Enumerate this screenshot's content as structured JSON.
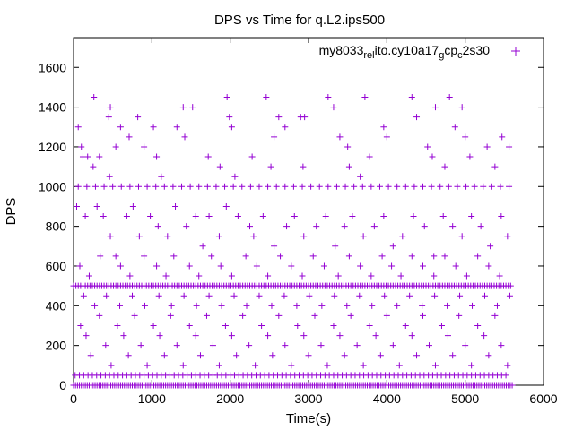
{
  "chart_data": {
    "type": "scatter",
    "title": "DPS vs Time for q.L2.ips500",
    "xlabel": "Time(s)",
    "ylabel": "DPS",
    "xlim": [
      0,
      6000
    ],
    "ylim": [
      0,
      1750
    ],
    "xticks": [
      0,
      1000,
      2000,
      3000,
      4000,
      5000,
      6000
    ],
    "yticks": [
      0,
      200,
      400,
      600,
      800,
      1000,
      1200,
      1400,
      1600
    ],
    "grid": false,
    "legend_position": "top-right",
    "marker": "+",
    "series": [
      {
        "name_parts": [
          {
            "text": "my8033",
            "sub": false
          },
          {
            "text": "rel",
            "sub": true
          },
          {
            "text": "ito.cy10a17",
            "sub": false
          },
          {
            "text": "g",
            "sub": true
          },
          {
            "text": "cp",
            "sub": false
          },
          {
            "text": "c",
            "sub": true
          },
          {
            "text": "2s30",
            "sub": false
          }
        ],
        "color": "#9400d3",
        "x_range": [
          0,
          5600
        ],
        "points": [
          [
            60,
            1300
          ],
          [
            100,
            1200
          ],
          [
            180,
            1150
          ],
          [
            260,
            1450
          ],
          [
            450,
            1350
          ],
          [
            470,
            1400
          ],
          [
            540,
            1200
          ],
          [
            600,
            1300
          ],
          [
            710,
            1250
          ],
          [
            820,
            1350
          ],
          [
            900,
            1200
          ],
          [
            1020,
            1300
          ],
          [
            1060,
            1150
          ],
          [
            1320,
            1300
          ],
          [
            1400,
            1400
          ],
          [
            1420,
            1250
          ],
          [
            1520,
            1400
          ],
          [
            1720,
            1150
          ],
          [
            1960,
            1450
          ],
          [
            1990,
            1350
          ],
          [
            2020,
            1300
          ],
          [
            2280,
            1150
          ],
          [
            2460,
            1450
          ],
          [
            2560,
            1250
          ],
          [
            2620,
            1350
          ],
          [
            2700,
            1300
          ],
          [
            2900,
            1350
          ],
          [
            2950,
            1350
          ],
          [
            3250,
            1450
          ],
          [
            3320,
            1400
          ],
          [
            3400,
            1250
          ],
          [
            3500,
            1200
          ],
          [
            3720,
            1450
          ],
          [
            3960,
            1300
          ],
          [
            4000,
            1250
          ],
          [
            4320,
            1450
          ],
          [
            4380,
            1350
          ],
          [
            4520,
            1200
          ],
          [
            4620,
            1400
          ],
          [
            4800,
            1450
          ],
          [
            4870,
            1300
          ],
          [
            4960,
            1400
          ],
          [
            5000,
            1250
          ],
          [
            5280,
            1200
          ],
          [
            5470,
            1250
          ],
          [
            5560,
            1200
          ],
          [
            120,
            1150
          ],
          [
            250,
            1100
          ],
          [
            330,
            1150
          ],
          [
            460,
            1050
          ],
          [
            1120,
            1050
          ],
          [
            1870,
            1100
          ],
          [
            2060,
            1050
          ],
          [
            2520,
            1100
          ],
          [
            2930,
            1100
          ],
          [
            3520,
            1100
          ],
          [
            3660,
            1050
          ],
          [
            3780,
            1150
          ],
          [
            4580,
            1150
          ],
          [
            4740,
            1100
          ],
          [
            5060,
            1150
          ],
          [
            5380,
            1100
          ],
          [
            40,
            900
          ],
          [
            150,
            850
          ],
          [
            300,
            900
          ],
          [
            380,
            850
          ],
          [
            470,
            750
          ],
          [
            540,
            650
          ],
          [
            680,
            850
          ],
          [
            760,
            900
          ],
          [
            840,
            750
          ],
          [
            980,
            850
          ],
          [
            1080,
            800
          ],
          [
            1200,
            750
          ],
          [
            1300,
            900
          ],
          [
            1440,
            800
          ],
          [
            1560,
            850
          ],
          [
            1650,
            700
          ],
          [
            1730,
            850
          ],
          [
            1860,
            750
          ],
          [
            1950,
            900
          ],
          [
            2100,
            850
          ],
          [
            2250,
            800
          ],
          [
            2300,
            750
          ],
          [
            2420,
            850
          ],
          [
            2560,
            700
          ],
          [
            2720,
            800
          ],
          [
            2820,
            850
          ],
          [
            2940,
            750
          ],
          [
            3100,
            800
          ],
          [
            3220,
            850
          ],
          [
            3340,
            700
          ],
          [
            3460,
            800
          ],
          [
            3560,
            850
          ],
          [
            3700,
            750
          ],
          [
            3840,
            800
          ],
          [
            3960,
            850
          ],
          [
            4080,
            700
          ],
          [
            4200,
            750
          ],
          [
            4340,
            850
          ],
          [
            4480,
            800
          ],
          [
            4600,
            650
          ],
          [
            4720,
            850
          ],
          [
            4840,
            800
          ],
          [
            4960,
            750
          ],
          [
            5080,
            850
          ],
          [
            5200,
            800
          ],
          [
            5320,
            700
          ],
          [
            5460,
            850
          ],
          [
            5540,
            750
          ],
          [
            80,
            600
          ],
          [
            200,
            550
          ],
          [
            340,
            650
          ],
          [
            600,
            600
          ],
          [
            720,
            550
          ],
          [
            900,
            650
          ],
          [
            1060,
            600
          ],
          [
            1180,
            550
          ],
          [
            1280,
            650
          ],
          [
            1480,
            600
          ],
          [
            1600,
            550
          ],
          [
            1760,
            650
          ],
          [
            1880,
            600
          ],
          [
            2020,
            550
          ],
          [
            2200,
            650
          ],
          [
            2340,
            600
          ],
          [
            2480,
            550
          ],
          [
            2640,
            650
          ],
          [
            2780,
            600
          ],
          [
            2920,
            550
          ],
          [
            3060,
            650
          ],
          [
            3200,
            600
          ],
          [
            3380,
            550
          ],
          [
            3520,
            650
          ],
          [
            3660,
            600
          ],
          [
            3800,
            550
          ],
          [
            3940,
            650
          ],
          [
            4060,
            600
          ],
          [
            4180,
            550
          ],
          [
            4320,
            650
          ],
          [
            4460,
            600
          ],
          [
            4600,
            550
          ],
          [
            4740,
            650
          ],
          [
            4880,
            600
          ],
          [
            5020,
            550
          ],
          [
            5160,
            650
          ],
          [
            5300,
            600
          ],
          [
            5440,
            550
          ],
          [
            90,
            300
          ],
          [
            160,
            250
          ],
          [
            220,
            150
          ],
          [
            330,
            350
          ],
          [
            410,
            200
          ],
          [
            480,
            100
          ],
          [
            560,
            300
          ],
          [
            640,
            250
          ],
          [
            700,
            150
          ],
          [
            780,
            350
          ],
          [
            860,
            200
          ],
          [
            940,
            100
          ],
          [
            1020,
            300
          ],
          [
            1100,
            250
          ],
          [
            1160,
            150
          ],
          [
            1240,
            350
          ],
          [
            1320,
            200
          ],
          [
            1400,
            100
          ],
          [
            1480,
            300
          ],
          [
            1560,
            250
          ],
          [
            1620,
            150
          ],
          [
            1700,
            350
          ],
          [
            1780,
            200
          ],
          [
            1860,
            100
          ],
          [
            1940,
            300
          ],
          [
            2020,
            250
          ],
          [
            2080,
            150
          ],
          [
            2160,
            350
          ],
          [
            2240,
            200
          ],
          [
            2320,
            100
          ],
          [
            2400,
            300
          ],
          [
            2480,
            250
          ],
          [
            2540,
            150
          ],
          [
            2620,
            350
          ],
          [
            2700,
            200
          ],
          [
            2780,
            100
          ],
          [
            2860,
            300
          ],
          [
            2940,
            250
          ],
          [
            3000,
            150
          ],
          [
            3080,
            350
          ],
          [
            3160,
            200
          ],
          [
            3240,
            100
          ],
          [
            3320,
            300
          ],
          [
            3400,
            250
          ],
          [
            3460,
            150
          ],
          [
            3540,
            350
          ],
          [
            3620,
            200
          ],
          [
            3700,
            100
          ],
          [
            3780,
            300
          ],
          [
            3860,
            250
          ],
          [
            3920,
            150
          ],
          [
            4000,
            350
          ],
          [
            4080,
            200
          ],
          [
            4160,
            100
          ],
          [
            4240,
            300
          ],
          [
            4320,
            250
          ],
          [
            4380,
            150
          ],
          [
            4460,
            350
          ],
          [
            4540,
            200
          ],
          [
            4620,
            100
          ],
          [
            4700,
            300
          ],
          [
            4780,
            250
          ],
          [
            4840,
            150
          ],
          [
            4920,
            350
          ],
          [
            5000,
            200
          ],
          [
            5080,
            100
          ],
          [
            5160,
            300
          ],
          [
            5240,
            250
          ],
          [
            5300,
            150
          ],
          [
            5380,
            350
          ],
          [
            5460,
            200
          ],
          [
            5540,
            100
          ],
          [
            130,
            450
          ],
          [
            270,
            400
          ],
          [
            420,
            450
          ],
          [
            590,
            400
          ],
          [
            750,
            450
          ],
          [
            910,
            400
          ],
          [
            1090,
            450
          ],
          [
            1250,
            400
          ],
          [
            1410,
            450
          ],
          [
            1570,
            400
          ],
          [
            1730,
            450
          ],
          [
            1890,
            400
          ],
          [
            2050,
            450
          ],
          [
            2210,
            400
          ],
          [
            2370,
            450
          ],
          [
            2530,
            400
          ],
          [
            2690,
            450
          ],
          [
            2850,
            400
          ],
          [
            3010,
            450
          ],
          [
            3170,
            400
          ],
          [
            3330,
            450
          ],
          [
            3490,
            400
          ],
          [
            3650,
            450
          ],
          [
            3810,
            400
          ],
          [
            3970,
            450
          ],
          [
            4130,
            400
          ],
          [
            4290,
            450
          ],
          [
            4450,
            400
          ],
          [
            4610,
            450
          ],
          [
            4770,
            400
          ],
          [
            4930,
            450
          ],
          [
            5090,
            400
          ],
          [
            5250,
            450
          ],
          [
            5410,
            400
          ],
          [
            5570,
            450
          ]
        ],
        "bands": [
          {
            "y": 0,
            "x_start": 0,
            "x_end": 5600,
            "step": 25
          },
          {
            "y": 50,
            "x_start": 20,
            "x_end": 5560,
            "step": 55
          },
          {
            "y": 500,
            "x_start": 0,
            "x_end": 5600,
            "step": 30
          },
          {
            "y": 1000,
            "x_start": 60,
            "x_end": 5580,
            "step": 110
          }
        ]
      }
    ]
  }
}
